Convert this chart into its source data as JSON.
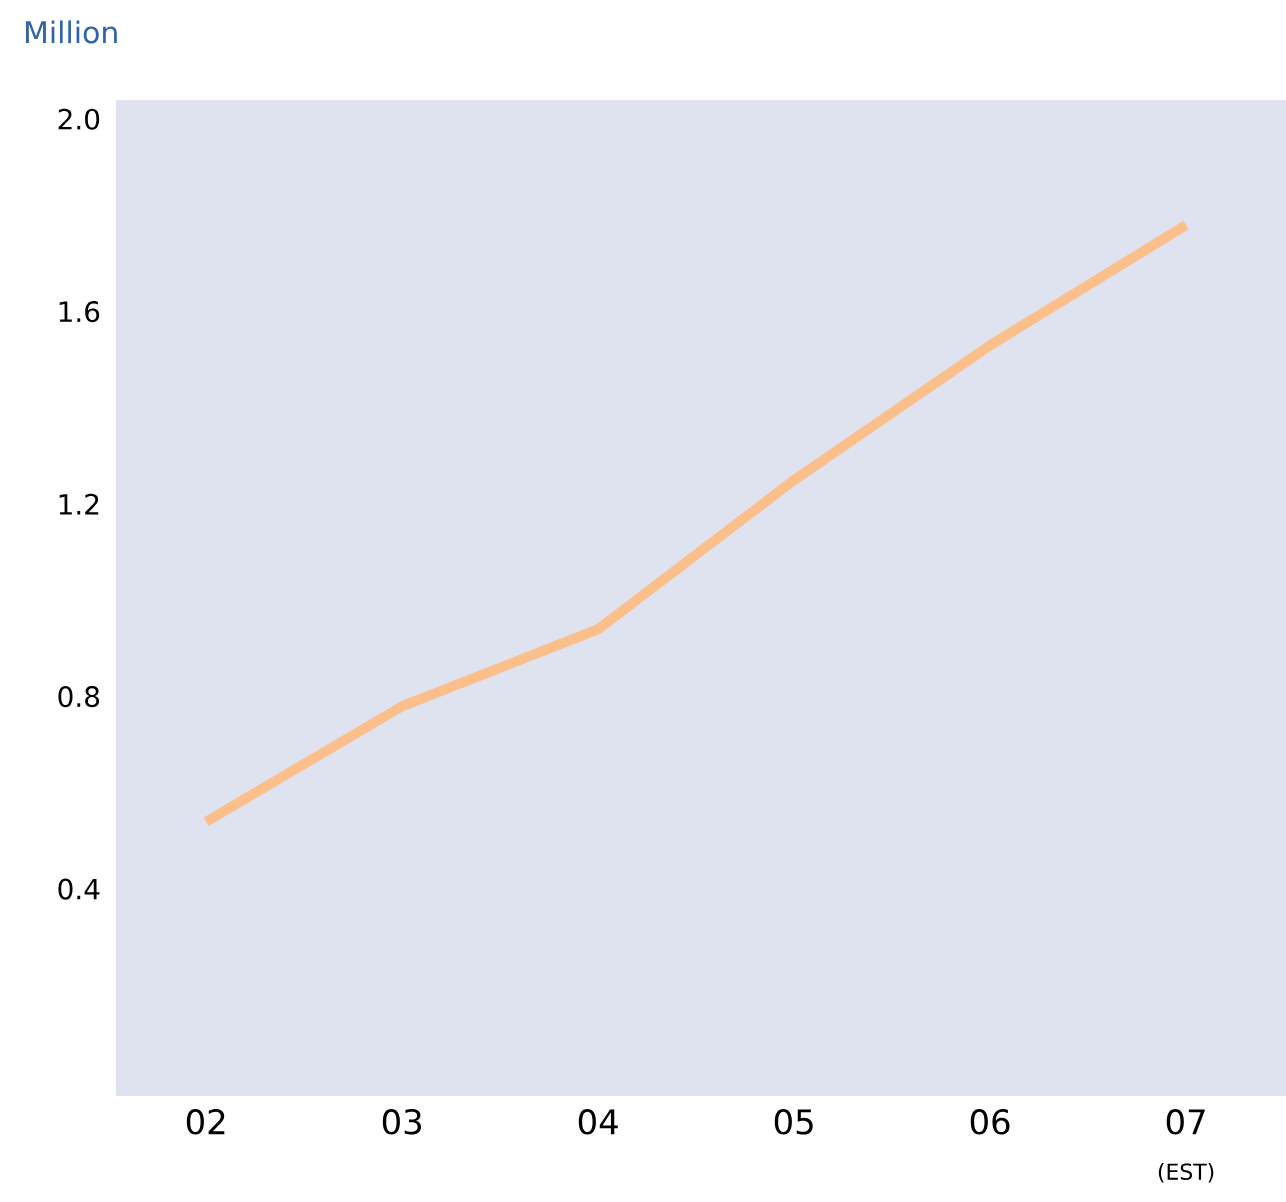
{
  "chart_data": {
    "type": "line",
    "ylabel": "Million",
    "categories": [
      "02",
      "03",
      "04",
      "05",
      "06",
      "07"
    ],
    "series": [
      {
        "color": "#fbbf8c",
        "values": [
          0.54,
          0.78,
          0.94,
          1.25,
          1.53,
          1.78
        ]
      }
    ],
    "ylim": [
      -0.03,
      2.04
    ],
    "yticks": [
      0.4,
      0.8,
      1.2,
      1.6,
      {
        "value": 2.0,
        "label": "2.0"
      }
    ],
    "annotations": [
      "(EST)"
    ],
    "grid": false,
    "marker": "none",
    "line_style": "solid"
  }
}
